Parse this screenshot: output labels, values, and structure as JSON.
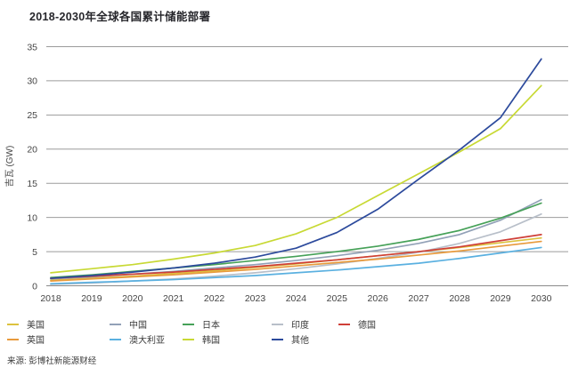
{
  "title": "2018-2030年全球各国累计储能部署",
  "source": "来源: 彭博社新能源财经",
  "axis": {
    "ylabel": "吉瓦 (GW)",
    "yticks": [
      0,
      5,
      10,
      15,
      20,
      25,
      30,
      35
    ]
  },
  "colors": {
    "grid": "#9b9b9b",
    "baseline": "#8a8a8a",
    "tick_text": "#454545",
    "title_text": "#26262b"
  },
  "chart_data": {
    "type": "line",
    "title": "2018-2030年全球各国累计储能部署",
    "xlabel": "",
    "ylabel": "吉瓦 (GW)",
    "ylim": [
      0,
      35
    ],
    "ytick_step": 5,
    "grid": true,
    "legend_position": "bottom",
    "x": [
      2018,
      2019,
      2020,
      2021,
      2022,
      2023,
      2024,
      2025,
      2026,
      2027,
      2028,
      2029,
      2030
    ],
    "series": [
      {
        "name": "美国",
        "color": "#dcc23e",
        "values": [
          0.8,
          1.1,
          1.4,
          1.8,
          2.2,
          2.7,
          3.2,
          3.8,
          4.4,
          5.0,
          5.6,
          6.3,
          7.0
        ]
      },
      {
        "name": "中国",
        "color": "#92a1b7",
        "values": [
          1.0,
          1.3,
          1.7,
          2.1,
          2.6,
          3.1,
          3.7,
          4.4,
          5.2,
          6.2,
          7.5,
          9.6,
          12.6
        ]
      },
      {
        "name": "日本",
        "color": "#46a158",
        "values": [
          1.2,
          1.6,
          2.1,
          2.6,
          3.1,
          3.7,
          4.3,
          5.0,
          5.8,
          6.8,
          8.1,
          9.9,
          12.1
        ]
      },
      {
        "name": "印度",
        "color": "#b8bfc9",
        "values": [
          0.2,
          0.4,
          0.7,
          1.0,
          1.4,
          1.9,
          2.5,
          3.2,
          4.0,
          4.9,
          6.2,
          7.9,
          10.5
        ]
      },
      {
        "name": "德国",
        "color": "#cf3f38",
        "values": [
          1.1,
          1.4,
          1.7,
          2.0,
          2.4,
          2.8,
          3.3,
          3.8,
          4.4,
          5.0,
          5.7,
          6.6,
          7.5
        ]
      },
      {
        "name": "英国",
        "color": "#e89a3c",
        "values": [
          0.7,
          1.0,
          1.3,
          1.6,
          2.0,
          2.4,
          2.9,
          3.4,
          3.9,
          4.5,
          5.1,
          5.8,
          6.5
        ]
      },
      {
        "name": "澳大利亚",
        "color": "#5ab0e0",
        "values": [
          0.3,
          0.5,
          0.7,
          0.9,
          1.2,
          1.5,
          1.9,
          2.3,
          2.8,
          3.3,
          4.0,
          4.8,
          5.6
        ]
      },
      {
        "name": "韩国",
        "color": "#c8d934",
        "values": [
          1.9,
          2.5,
          3.1,
          3.9,
          4.8,
          5.9,
          7.6,
          10.0,
          13.2,
          16.4,
          19.6,
          23.0,
          29.3
        ]
      },
      {
        "name": "其他",
        "color": "#2c4a9c",
        "values": [
          1.1,
          1.5,
          2.0,
          2.6,
          3.3,
          4.2,
          5.5,
          7.8,
          11.2,
          15.6,
          19.9,
          24.6,
          33.2
        ]
      }
    ]
  }
}
